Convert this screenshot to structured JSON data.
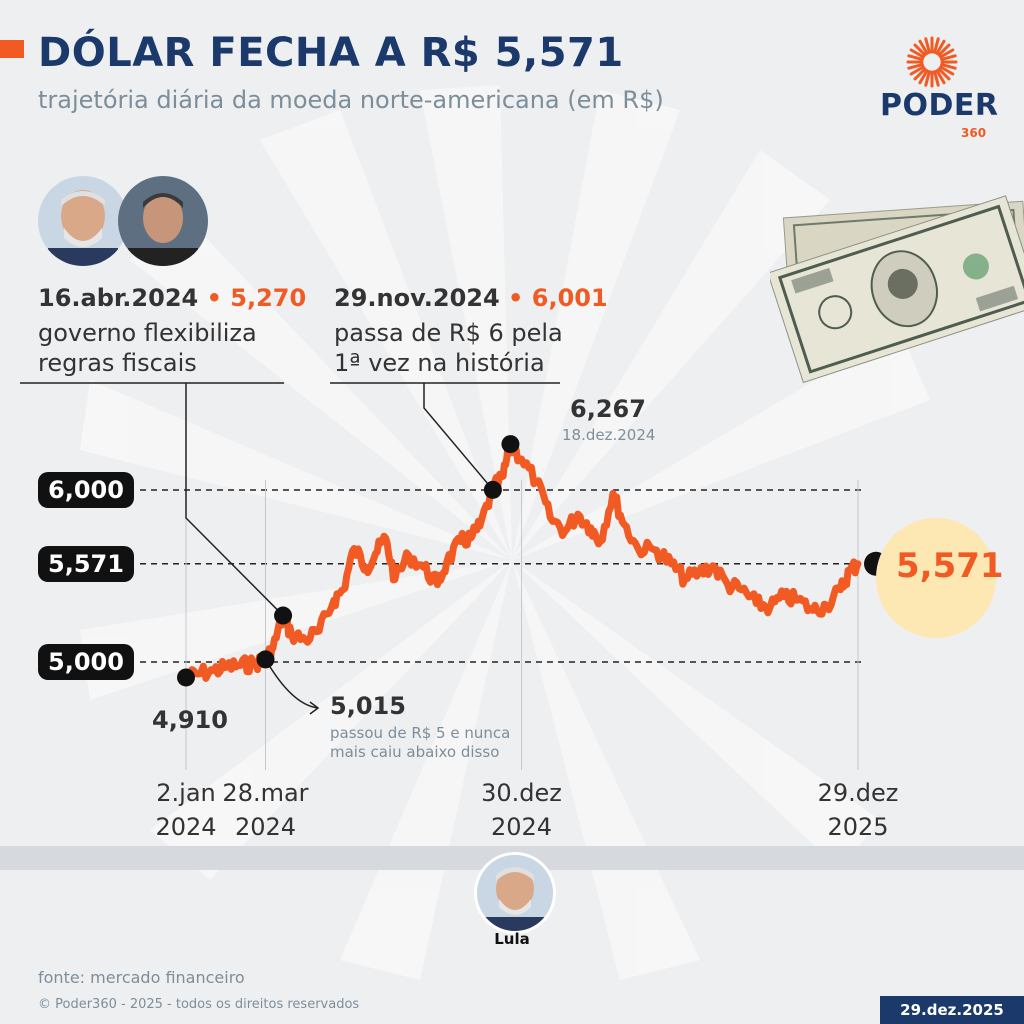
{
  "header": {
    "title": "DÓLAR FECHA A R$ 5,571",
    "subtitle": "trajetória diária da moeda norte-americana (em R$)"
  },
  "logo": {
    "word": "PODER",
    "number": "360"
  },
  "annotations": {
    "a1": {
      "date": "16.abr.2024",
      "sep": " • ",
      "value": "5,270",
      "line1": "governo flexibiliza",
      "line2": "regras fiscais"
    },
    "a2": {
      "date": "29.nov.2024",
      "sep": " • ",
      "value": "6,001",
      "line1": "passa de R$ 6 pela",
      "line2": "1ª vez na história"
    },
    "peak": {
      "value": "6,267",
      "date": "18.dez.2024"
    },
    "start": {
      "value": "4,910"
    },
    "cross5": {
      "value": "5,015",
      "line1": "passou de R$ 5 e nunca",
      "line2": "mais caiu abaixo disso"
    },
    "final": {
      "value": "5,571"
    }
  },
  "footer": {
    "lula_label": "Lula",
    "source": "fonte: mercado financeiro",
    "copyright": "© Poder360 - 2025 - todos os direitos reservados",
    "date_badge": "29.dez.2025"
  },
  "colors": {
    "line": "#f15a22",
    "title": "#1b3a6b",
    "accent": "#f15a22",
    "highlight": "#fde8b4"
  },
  "icons": [
    "dollar-bills-image",
    "poder360-sun-logo"
  ],
  "chart_data": {
    "type": "line",
    "title": "DÓLAR FECHA A R$ 5,571",
    "subtitle": "trajetória diária da moeda norte-americana (em R$)",
    "ylabel": "R$",
    "xlabel": "",
    "ylim": [
      4.8,
      6.4
    ],
    "grid": false,
    "y_reference_lines": [
      {
        "value": 6.0,
        "label": "6,000"
      },
      {
        "value": 5.571,
        "label": "5,571"
      },
      {
        "value": 5.0,
        "label": "5,000"
      }
    ],
    "x_ticks": [
      {
        "date": "2024-01-02",
        "line1": "2.jan",
        "line2": "2024"
      },
      {
        "date": "2024-03-28",
        "line1": "28.mar",
        "line2": "2024"
      },
      {
        "date": "2024-12-30",
        "line1": "30.dez",
        "line2": "2024"
      },
      {
        "date": "2025-12-29",
        "line1": "29.dez",
        "line2": "2025"
      }
    ],
    "series": [
      {
        "points": [
          [
            "2024-01-02",
            4.91
          ],
          [
            "2024-01-15",
            4.93
          ],
          [
            "2024-02-01",
            4.95
          ],
          [
            "2024-02-15",
            4.97
          ],
          [
            "2024-03-01",
            4.98
          ],
          [
            "2024-03-15",
            4.99
          ],
          [
            "2024-03-28",
            5.015
          ],
          [
            "2024-04-05",
            5.08
          ],
          [
            "2024-04-16",
            5.27
          ],
          [
            "2024-04-25",
            5.16
          ],
          [
            "2024-05-10",
            5.13
          ],
          [
            "2024-05-25",
            5.18
          ],
          [
            "2024-06-10",
            5.36
          ],
          [
            "2024-06-20",
            5.42
          ],
          [
            "2024-07-02",
            5.66
          ],
          [
            "2024-07-15",
            5.55
          ],
          [
            "2024-07-25",
            5.63
          ],
          [
            "2024-08-05",
            5.72
          ],
          [
            "2024-08-15",
            5.48
          ],
          [
            "2024-08-30",
            5.62
          ],
          [
            "2024-09-15",
            5.55
          ],
          [
            "2024-09-30",
            5.45
          ],
          [
            "2024-10-10",
            5.58
          ],
          [
            "2024-10-25",
            5.7
          ],
          [
            "2024-11-05",
            5.72
          ],
          [
            "2024-11-15",
            5.79
          ],
          [
            "2024-11-29",
            6.001
          ],
          [
            "2024-12-10",
            6.08
          ],
          [
            "2024-12-18",
            6.267
          ],
          [
            "2024-12-30",
            6.18
          ],
          [
            "2025-01-15",
            6.05
          ],
          [
            "2025-01-30",
            5.84
          ],
          [
            "2025-02-15",
            5.76
          ],
          [
            "2025-03-01",
            5.86
          ],
          [
            "2025-03-15",
            5.78
          ],
          [
            "2025-03-25",
            5.7
          ],
          [
            "2025-04-08",
            5.98
          ],
          [
            "2025-04-20",
            5.8
          ],
          [
            "2025-05-05",
            5.66
          ],
          [
            "2025-05-25",
            5.65
          ],
          [
            "2025-06-10",
            5.57
          ],
          [
            "2025-06-25",
            5.48
          ],
          [
            "2025-07-10",
            5.52
          ],
          [
            "2025-07-25",
            5.56
          ],
          [
            "2025-08-10",
            5.45
          ],
          [
            "2025-08-25",
            5.42
          ],
          [
            "2025-09-10",
            5.34
          ],
          [
            "2025-09-25",
            5.32
          ],
          [
            "2025-10-10",
            5.38
          ],
          [
            "2025-10-25",
            5.36
          ],
          [
            "2025-11-10",
            5.3
          ],
          [
            "2025-11-25",
            5.33
          ],
          [
            "2025-12-10",
            5.42
          ],
          [
            "2025-12-20",
            5.53
          ],
          [
            "2025-12-29",
            5.571
          ]
        ]
      }
    ],
    "highlighted_points": [
      {
        "date": "2024-01-02",
        "value": 4.91
      },
      {
        "date": "2024-03-28",
        "value": 5.015
      },
      {
        "date": "2024-04-16",
        "value": 5.27
      },
      {
        "date": "2024-11-29",
        "value": 6.001
      },
      {
        "date": "2024-12-18",
        "value": 6.267
      },
      {
        "date": "2025-12-29",
        "value": 5.571
      }
    ]
  }
}
